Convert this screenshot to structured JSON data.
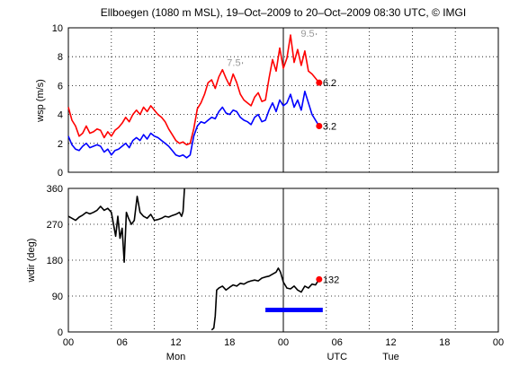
{
  "chart_data": {
    "title": "Ellboegen (1080 m MSL), 19–Oct–2009 to 20–Oct–2009 08:30 UTC, © IMGI",
    "x_axis": {
      "range_hours": [
        0,
        60
      ],
      "tick_labels": [
        "00",
        "06",
        "12",
        "18",
        "00",
        "06",
        "12",
        "18",
        "00"
      ],
      "day_labels": [
        {
          "hour": 12,
          "text": "Mon"
        },
        {
          "hour": 30,
          "text": "UTC"
        },
        {
          "hour": 36,
          "text": "Tue"
        }
      ],
      "midnight_line_hour": 24
    },
    "panels": [
      {
        "type": "line",
        "ylabel": "wsp (m/s)",
        "ylim": [
          0,
          10
        ],
        "y_ticks": [
          0,
          2,
          4,
          6,
          8,
          10
        ],
        "grid": true,
        "series": [
          {
            "color": "#ff0000",
            "x": [
              0.0,
              0.5,
              1.0,
              1.5,
              2.0,
              2.5,
              3.0,
              3.5,
              4.0,
              4.5,
              5.0,
              5.5,
              6.0,
              6.5,
              7.0,
              7.5,
              8.0,
              8.5,
              9.0,
              9.5,
              10.0,
              10.5,
              11.0,
              11.5,
              12.0,
              12.5,
              13.0,
              13.5,
              14.0,
              14.5,
              15.0,
              15.5,
              16.0,
              16.5,
              17.0,
              17.5,
              18.0,
              18.5,
              19.0,
              19.5,
              20.0,
              20.5,
              21.0,
              21.5,
              22.0,
              22.5,
              23.0,
              23.5,
              24.0,
              24.5,
              25.0,
              25.5,
              26.0,
              26.5,
              27.0,
              27.5,
              28.0,
              28.5,
              29.0,
              29.5,
              30.0,
              30.5,
              31.0,
              31.5,
              32.0,
              32.5,
              33.0,
              33.5,
              34.0,
              34.5,
              35.0
            ],
            "values": [
              4.5,
              3.6,
              3.2,
              2.5,
              2.7,
              3.2,
              2.7,
              2.8,
              3.0,
              2.9,
              2.4,
              2.8,
              2.5,
              2.9,
              3.1,
              3.4,
              3.8,
              3.5,
              4.0,
              4.3,
              4.0,
              4.5,
              4.2,
              4.6,
              4.3,
              4.0,
              3.8,
              3.5,
              3.0,
              2.6,
              2.2,
              2.0,
              2.1,
              1.9,
              2.0,
              3.0,
              4.4,
              4.8,
              5.4,
              6.2,
              6.4,
              5.8,
              6.6,
              7.1,
              6.5,
              6.0,
              6.8,
              6.2,
              5.4,
              5.0,
              4.8,
              4.6,
              5.2,
              5.5,
              4.9,
              5.0,
              6.5,
              7.8,
              7.0,
              8.6,
              7.2,
              7.9,
              9.5,
              7.6,
              8.5,
              7.4,
              8.4,
              7.0,
              6.8,
              6.5,
              6.2
            ],
            "end_value": 6.2,
            "end_label": "6.2",
            "annotations": [
              {
                "x": 24.3,
                "y": 7.5,
                "text": "7.5"
              },
              {
                "x": 34.6,
                "y": 9.5,
                "text": "9.5"
              }
            ]
          },
          {
            "color": "#0000ff",
            "x": [
              0.0,
              0.5,
              1.0,
              1.5,
              2.0,
              2.5,
              3.0,
              3.5,
              4.0,
              4.5,
              5.0,
              5.5,
              6.0,
              6.5,
              7.0,
              7.5,
              8.0,
              8.5,
              9.0,
              9.5,
              10.0,
              10.5,
              11.0,
              11.5,
              12.0,
              12.5,
              13.0,
              13.5,
              14.0,
              14.5,
              15.0,
              15.5,
              16.0,
              16.5,
              17.0,
              17.5,
              18.0,
              18.5,
              19.0,
              19.5,
              20.0,
              20.5,
              21.0,
              21.5,
              22.0,
              22.5,
              23.0,
              23.5,
              24.0,
              24.5,
              25.0,
              25.5,
              26.0,
              26.5,
              27.0,
              27.5,
              28.0,
              28.5,
              29.0,
              29.5,
              30.0,
              30.5,
              31.0,
              31.5,
              32.0,
              32.5,
              33.0,
              33.5,
              34.0,
              34.5,
              35.0
            ],
            "values": [
              2.5,
              1.9,
              1.6,
              1.5,
              1.8,
              2.0,
              1.7,
              1.8,
              1.9,
              1.8,
              1.4,
              1.6,
              1.2,
              1.5,
              1.6,
              1.8,
              2.0,
              1.7,
              2.2,
              2.4,
              2.2,
              2.6,
              2.3,
              2.7,
              2.5,
              2.4,
              2.2,
              2.0,
              1.8,
              1.5,
              1.2,
              1.1,
              1.2,
              1.0,
              1.2,
              2.5,
              3.2,
              3.5,
              3.4,
              3.6,
              3.8,
              3.7,
              4.2,
              4.5,
              4.1,
              4.0,
              4.3,
              4.2,
              3.8,
              3.6,
              3.5,
              3.3,
              3.8,
              4.0,
              3.5,
              3.6,
              4.3,
              4.8,
              4.2,
              5.0,
              4.6,
              4.8,
              5.4,
              4.5,
              5.0,
              4.3,
              5.6,
              4.8,
              4.0,
              3.6,
              3.2
            ],
            "end_value": 3.2,
            "end_label": "3.2"
          }
        ]
      },
      {
        "type": "line",
        "ylabel": "wdir (deg)",
        "ylim": [
          0,
          360
        ],
        "y_ticks": [
          0,
          90,
          180,
          270,
          360
        ],
        "grid": true,
        "series": [
          {
            "color": "#000000",
            "x": [
              0.0,
              0.5,
              1.0,
              1.5,
              2.0,
              2.5,
              3.0,
              3.5,
              4.0,
              4.5,
              5.0,
              5.5,
              6.0,
              6.3,
              6.6,
              6.9,
              7.2,
              7.5,
              7.8,
              8.1,
              8.4,
              8.8,
              9.2,
              9.6,
              10.0,
              10.5,
              11.0,
              11.5,
              12.0,
              12.5,
              13.0,
              13.5,
              14.0,
              14.5,
              15.0,
              15.5,
              15.8,
              16.0,
              16.2
            ],
            "values": [
              290,
              285,
              280,
              288,
              293,
              300,
              296,
              300,
              305,
              315,
              305,
              310,
              300,
              270,
              240,
              290,
              235,
              260,
              175,
              300,
              285,
              270,
              280,
              340,
              300,
              290,
              285,
              295,
              280,
              282,
              285,
              290,
              288,
              292,
              295,
              300,
              290,
              302,
              360
            ]
          },
          {
            "color": "#000000",
            "x": [
              20.0,
              20.3,
              20.5,
              20.7,
              21.0,
              21.5,
              22.0,
              22.5,
              23.0,
              23.5,
              24.0,
              24.5,
              25.0,
              25.5,
              26.0,
              26.5,
              27.0,
              27.5,
              28.0,
              28.5,
              29.0,
              29.3,
              29.6,
              30.0,
              30.5,
              31.0,
              31.5,
              32.0,
              32.5,
              33.0,
              33.5,
              34.0,
              34.5,
              35.0
            ],
            "values": [
              5,
              10,
              40,
              105,
              110,
              115,
              105,
              112,
              118,
              115,
              122,
              120,
              125,
              128,
              130,
              128,
              135,
              138,
              140,
              145,
              150,
              160,
              150,
              125,
              110,
              108,
              115,
              105,
              100,
              115,
              110,
              120,
              118,
              132
            ]
          }
        ],
        "end_value": 132,
        "end_label": "132",
        "bar": {
          "color": "#0000ff",
          "x_start": 27.5,
          "x_end": 35.5,
          "y": 55
        }
      }
    ]
  }
}
